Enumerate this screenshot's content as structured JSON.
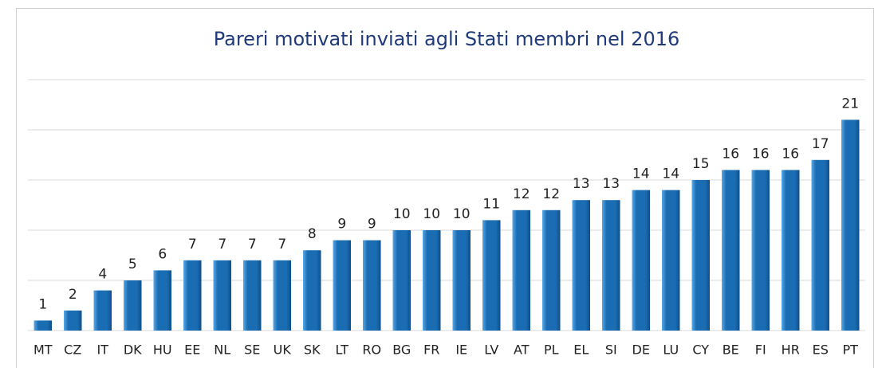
{
  "chart_data": {
    "type": "bar",
    "title": "Pareri motivati inviati agli Stati membri nel 2016",
    "categories": [
      "MT",
      "CZ",
      "IT",
      "DK",
      "HU",
      "EE",
      "NL",
      "SE",
      "UK",
      "SK",
      "LT",
      "RO",
      "BG",
      "FR",
      "IE",
      "LV",
      "AT",
      "PL",
      "EL",
      "SI",
      "DE",
      "LU",
      "CY",
      "BE",
      "FI",
      "HR",
      "ES",
      "PT"
    ],
    "values": [
      1,
      2,
      4,
      5,
      6,
      7,
      7,
      7,
      7,
      8,
      9,
      9,
      10,
      10,
      10,
      11,
      12,
      12,
      13,
      13,
      14,
      14,
      15,
      16,
      16,
      16,
      17,
      21
    ],
    "color": "#1a6db3",
    "ylim": [
      0,
      25
    ],
    "yticks": [
      0,
      5,
      10,
      15,
      20,
      25
    ],
    "grid": true
  }
}
